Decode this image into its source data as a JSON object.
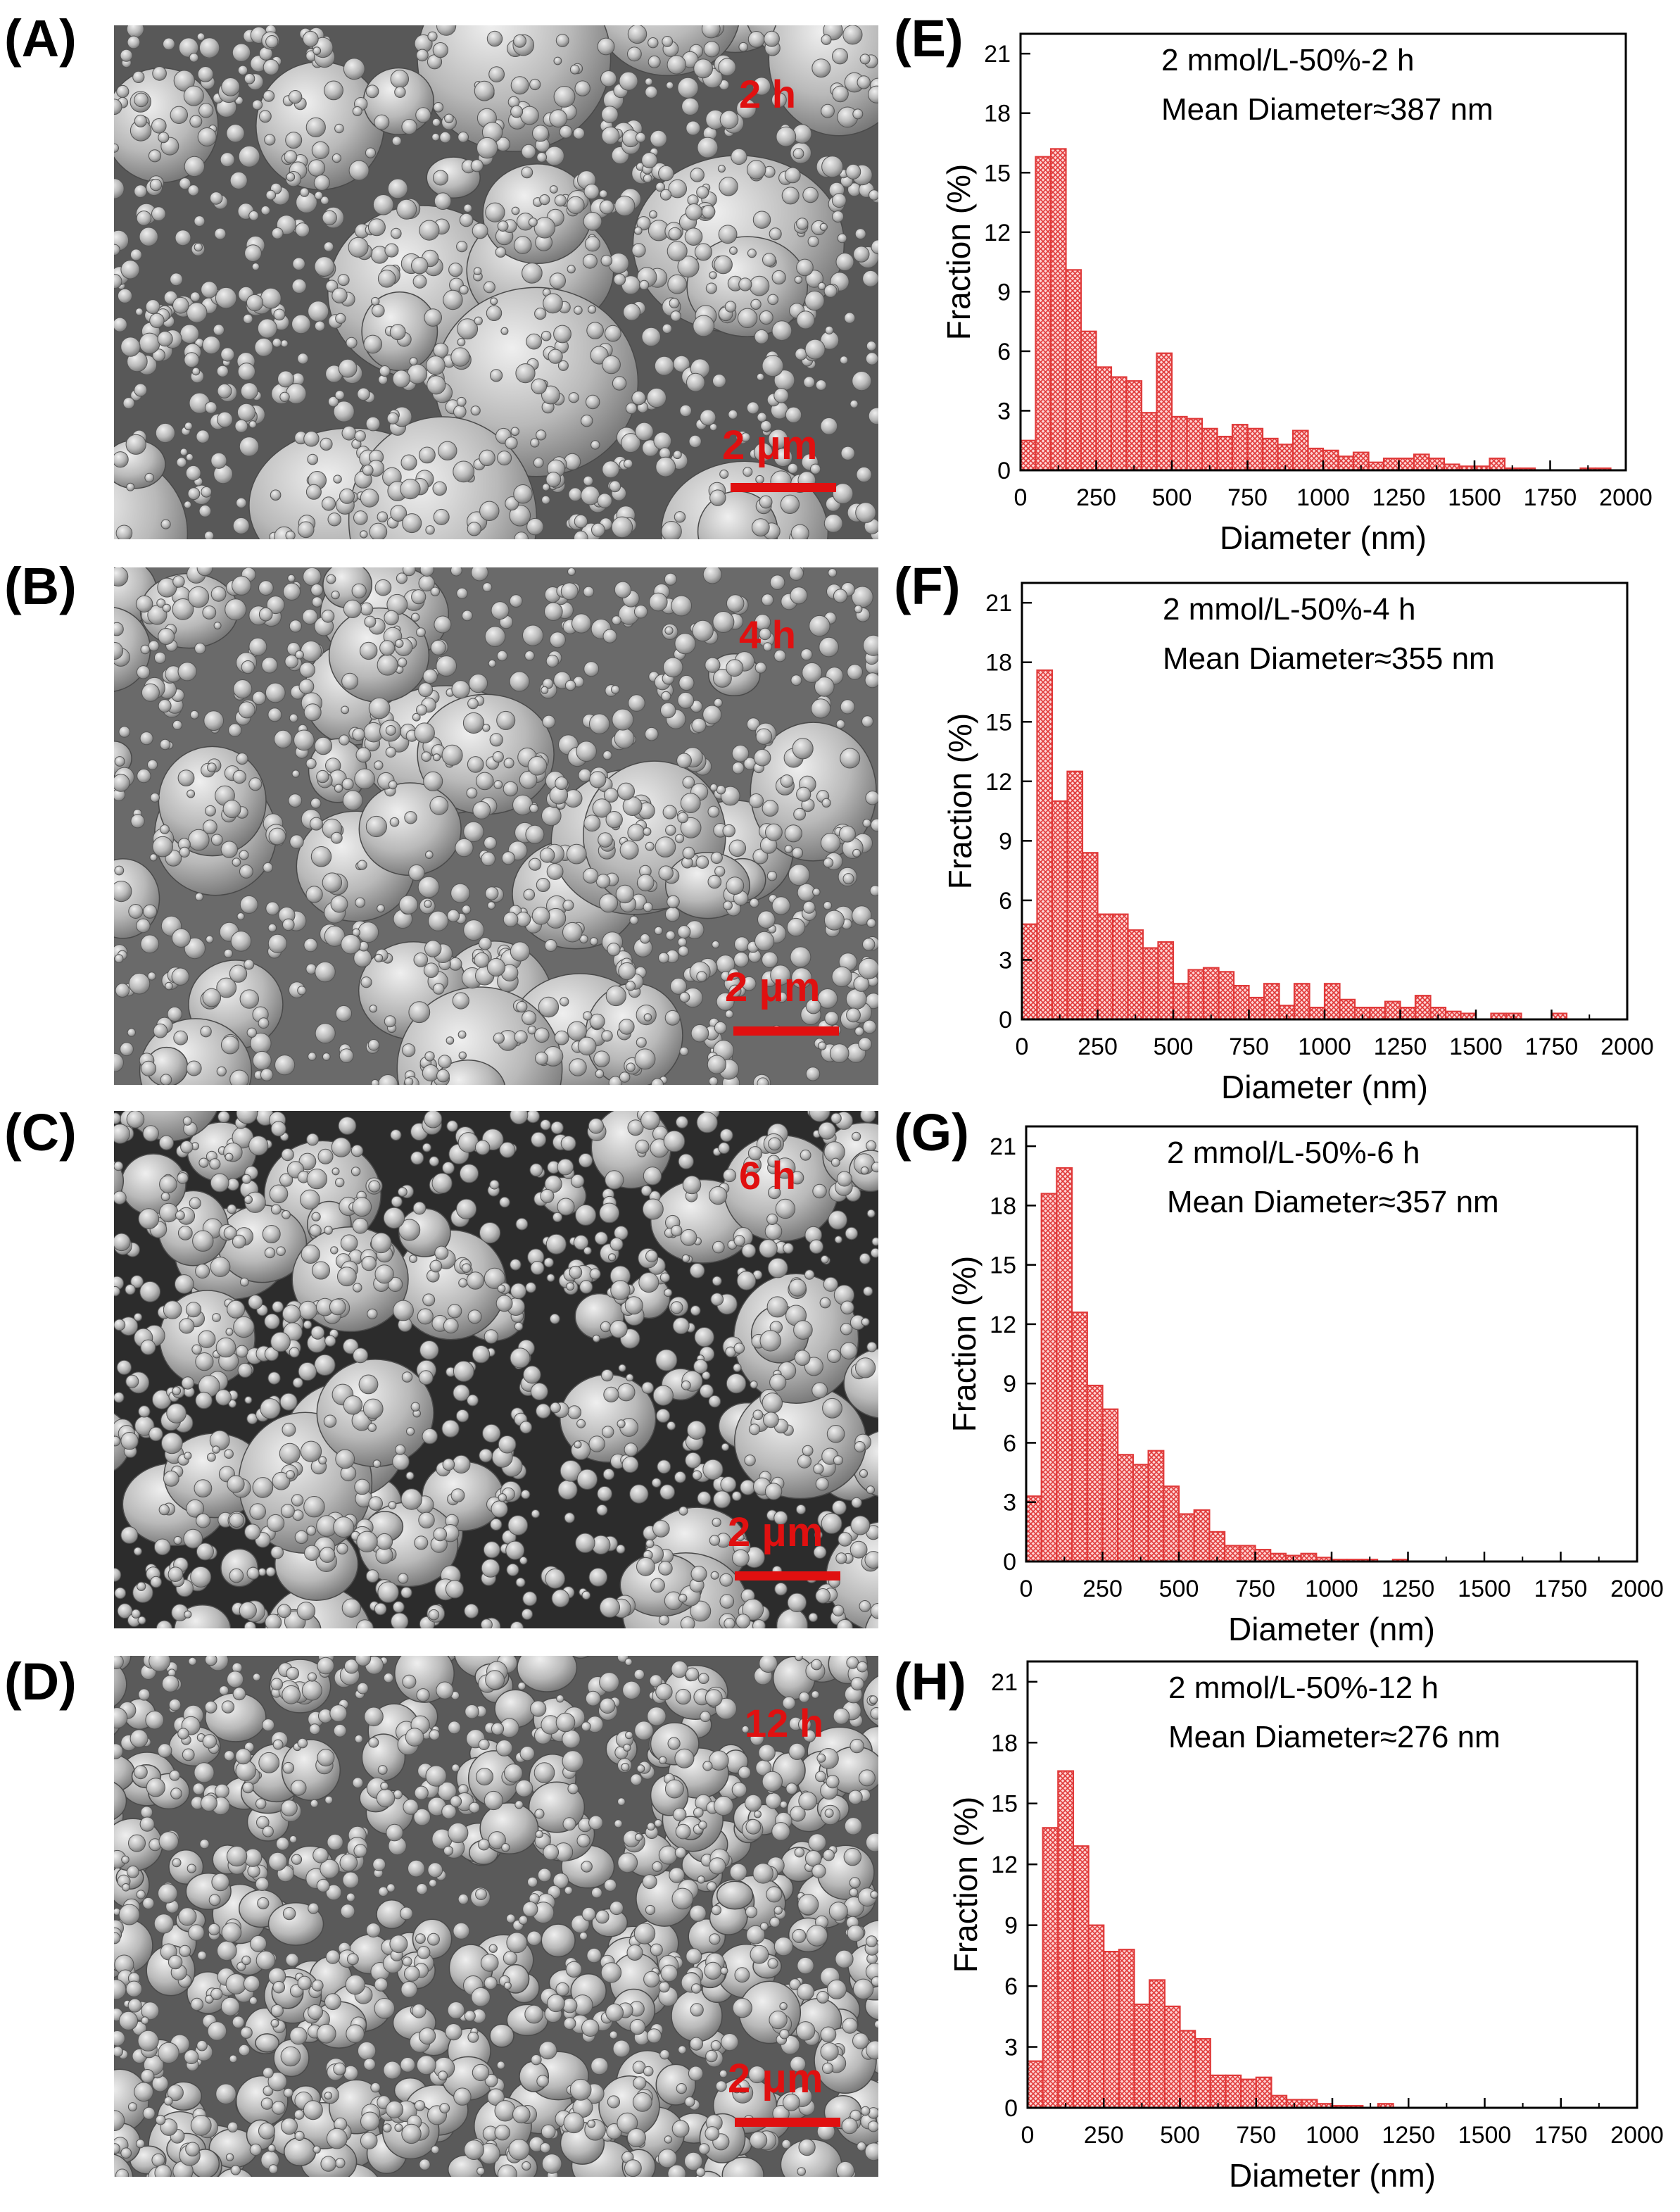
{
  "figure": {
    "sem_panels": [
      {
        "label": "(A)",
        "time": "2 h",
        "scale": "2 μm"
      },
      {
        "label": "(B)",
        "time": "4 h",
        "scale": "2 μm"
      },
      {
        "label": "(C)",
        "time": "6 h",
        "scale": "2 μm"
      },
      {
        "label": "(D)",
        "time": "12 h",
        "scale": "2 μm"
      }
    ],
    "hist_labels": [
      "(E)",
      "(F)",
      "(G)",
      "(H)"
    ]
  },
  "chart_data": [
    {
      "type": "bar",
      "annotation_line1": "2 mmol/L-50%-2 h",
      "annotation_line2": "Mean Diameter≈387 nm",
      "xlabel": "Diameter (nm)",
      "ylabel": "Fraction (%)",
      "xlim": [
        0,
        2000
      ],
      "ylim": [
        0,
        22
      ],
      "xticks": [
        0,
        250,
        500,
        750,
        1000,
        1250,
        1500,
        1750,
        2000
      ],
      "yticks": [
        0,
        3,
        6,
        9,
        12,
        15,
        18,
        21
      ],
      "bin_width": 50,
      "bar_color": "#e03a3a",
      "x": [
        25,
        75,
        125,
        175,
        225,
        275,
        325,
        375,
        425,
        475,
        525,
        575,
        625,
        675,
        725,
        775,
        825,
        875,
        925,
        975,
        1025,
        1075,
        1125,
        1175,
        1225,
        1275,
        1325,
        1375,
        1425,
        1475,
        1525,
        1575,
        1625,
        1675,
        1725,
        1775,
        1825,
        1875,
        1925
      ],
      "values": [
        1.5,
        15.8,
        16.2,
        10.1,
        7.0,
        5.2,
        4.7,
        4.5,
        2.9,
        5.9,
        2.7,
        2.6,
        2.1,
        1.7,
        2.3,
        2.1,
        1.6,
        1.3,
        2.0,
        1.1,
        1.0,
        0.7,
        0.9,
        0.4,
        0.6,
        0.6,
        0.8,
        0.6,
        0.3,
        0.2,
        0.2,
        0.6,
        0.1,
        0.1,
        0.0,
        0.0,
        0.0,
        0.1,
        0.1
      ]
    },
    {
      "type": "bar",
      "annotation_line1": "2 mmol/L-50%-4 h",
      "annotation_line2": "Mean Diameter≈355 nm",
      "xlabel": "Diameter (nm)",
      "ylabel": "Fraction (%)",
      "xlim": [
        0,
        2000
      ],
      "ylim": [
        0,
        22
      ],
      "xticks": [
        0,
        250,
        500,
        750,
        1000,
        1250,
        1500,
        1750,
        2000
      ],
      "yticks": [
        0,
        3,
        6,
        9,
        12,
        15,
        18,
        21
      ],
      "bin_width": 50,
      "bar_color": "#e03a3a",
      "x": [
        25,
        75,
        125,
        175,
        225,
        275,
        325,
        375,
        425,
        475,
        525,
        575,
        625,
        675,
        725,
        775,
        825,
        875,
        925,
        975,
        1025,
        1075,
        1125,
        1175,
        1225,
        1275,
        1325,
        1375,
        1425,
        1475,
        1525,
        1575,
        1625,
        1675,
        1725,
        1775
      ],
      "values": [
        4.8,
        17.6,
        11.0,
        12.5,
        8.4,
        5.3,
        5.3,
        4.5,
        3.6,
        3.9,
        1.8,
        2.5,
        2.6,
        2.4,
        1.7,
        1.1,
        1.8,
        0.7,
        1.8,
        0.6,
        1.8,
        1.0,
        0.6,
        0.6,
        0.9,
        0.6,
        1.2,
        0.6,
        0.4,
        0.3,
        0.0,
        0.3,
        0.3,
        0.0,
        0.0,
        0.3
      ]
    },
    {
      "type": "bar",
      "annotation_line1": "2 mmol/L-50%-6 h",
      "annotation_line2": "Mean Diameter≈357 nm",
      "xlabel": "Diameter (nm)",
      "ylabel": "Fraction (%)",
      "xlim": [
        0,
        2000
      ],
      "ylim": [
        0,
        22
      ],
      "xticks": [
        0,
        250,
        500,
        750,
        1000,
        1250,
        1500,
        1750,
        2000
      ],
      "yticks": [
        0,
        3,
        6,
        9,
        12,
        15,
        18,
        21
      ],
      "bin_width": 50,
      "bar_color": "#e03a3a",
      "x": [
        25,
        75,
        125,
        175,
        225,
        275,
        325,
        375,
        425,
        475,
        525,
        575,
        625,
        675,
        725,
        775,
        825,
        875,
        925,
        975,
        1025,
        1075,
        1125,
        1175,
        1225
      ],
      "values": [
        3.3,
        18.6,
        19.9,
        12.6,
        8.9,
        7.7,
        5.4,
        4.9,
        5.6,
        3.8,
        2.4,
        2.6,
        1.5,
        0.8,
        0.8,
        0.6,
        0.4,
        0.3,
        0.4,
        0.2,
        0.1,
        0.1,
        0.1,
        0.0,
        0.1
      ]
    },
    {
      "type": "bar",
      "annotation_line1": "2 mmol/L-50%-12 h",
      "annotation_line2": "Mean Diameter≈276 nm",
      "xlabel": "Diameter (nm)",
      "ylabel": "Fraction (%)",
      "xlim": [
        0,
        2000
      ],
      "ylim": [
        0,
        22
      ],
      "xticks": [
        0,
        250,
        500,
        750,
        1000,
        1250,
        1500,
        1750,
        2000
      ],
      "yticks": [
        0,
        3,
        6,
        9,
        12,
        15,
        18,
        21
      ],
      "bin_width": 50,
      "bar_color": "#e03a3a",
      "x": [
        25,
        75,
        125,
        175,
        225,
        275,
        325,
        375,
        425,
        475,
        525,
        575,
        625,
        675,
        725,
        775,
        825,
        875,
        925,
        975,
        1025,
        1075,
        1125,
        1175
      ],
      "values": [
        2.3,
        13.8,
        16.6,
        12.9,
        9.0,
        7.7,
        7.8,
        5.1,
        6.3,
        5.0,
        3.8,
        3.4,
        1.6,
        1.6,
        1.4,
        1.5,
        0.6,
        0.4,
        0.4,
        0.2,
        0.1,
        0.1,
        0.0,
        0.2
      ]
    }
  ]
}
